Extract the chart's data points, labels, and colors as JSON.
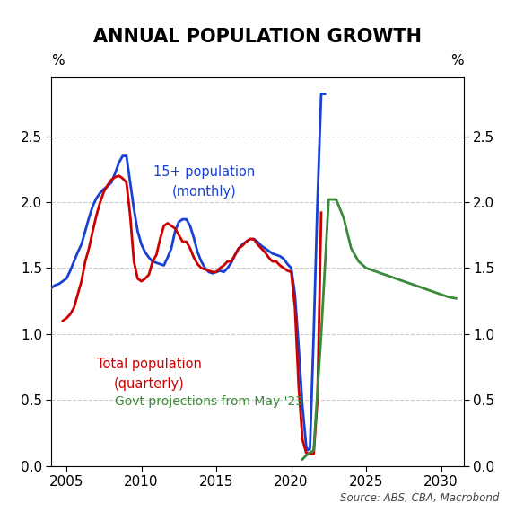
{
  "title": "ANNUAL POPULATION GROWTH",
  "ylabel_left": "%",
  "ylabel_right": "%",
  "source": "Source: ABS, CBA, Macrobond",
  "xlim": [
    2004.0,
    2031.5
  ],
  "ylim": [
    0.0,
    2.95
  ],
  "yticks": [
    0.0,
    0.5,
    1.0,
    1.5,
    2.0,
    2.5
  ],
  "xticks": [
    2005,
    2010,
    2015,
    2020,
    2025,
    2030
  ],
  "blue_color": "#1740d4",
  "red_color": "#cc0000",
  "green_color": "#3a8a3a",
  "blue_label_line1": "15+ population",
  "blue_label_line2": "(monthly)",
  "red_label_line1": "Total population",
  "red_label_line2": "(quarterly)",
  "green_label": "Govt projections from May '23",
  "blue_x": [
    2004.0,
    2004.25,
    2004.5,
    2004.75,
    2005.0,
    2005.25,
    2005.5,
    2005.75,
    2006.0,
    2006.25,
    2006.5,
    2006.75,
    2007.0,
    2007.25,
    2007.5,
    2007.75,
    2008.0,
    2008.25,
    2008.5,
    2008.75,
    2009.0,
    2009.25,
    2009.5,
    2009.75,
    2010.0,
    2010.25,
    2010.5,
    2010.75,
    2011.0,
    2011.25,
    2011.5,
    2011.75,
    2012.0,
    2012.25,
    2012.5,
    2012.75,
    2013.0,
    2013.25,
    2013.5,
    2013.75,
    2014.0,
    2014.25,
    2014.5,
    2014.75,
    2015.0,
    2015.25,
    2015.5,
    2015.75,
    2016.0,
    2016.25,
    2016.5,
    2016.75,
    2017.0,
    2017.25,
    2017.5,
    2017.75,
    2018.0,
    2018.25,
    2018.5,
    2018.75,
    2019.0,
    2019.25,
    2019.5,
    2019.75,
    2020.0,
    2020.25,
    2020.5,
    2020.75,
    2021.0,
    2021.1,
    2021.25,
    2021.5,
    2021.75,
    2022.0,
    2022.25
  ],
  "blue_y": [
    1.35,
    1.37,
    1.38,
    1.4,
    1.42,
    1.48,
    1.55,
    1.62,
    1.68,
    1.78,
    1.88,
    1.97,
    2.03,
    2.07,
    2.1,
    2.12,
    2.15,
    2.22,
    2.3,
    2.35,
    2.35,
    2.15,
    1.95,
    1.78,
    1.68,
    1.62,
    1.58,
    1.55,
    1.54,
    1.53,
    1.52,
    1.58,
    1.65,
    1.78,
    1.85,
    1.87,
    1.87,
    1.82,
    1.73,
    1.62,
    1.55,
    1.5,
    1.47,
    1.46,
    1.47,
    1.48,
    1.47,
    1.5,
    1.54,
    1.6,
    1.65,
    1.68,
    1.7,
    1.72,
    1.72,
    1.7,
    1.67,
    1.65,
    1.63,
    1.61,
    1.6,
    1.59,
    1.57,
    1.53,
    1.5,
    1.3,
    0.9,
    0.45,
    0.15,
    0.12,
    0.13,
    1.0,
    2.0,
    2.82,
    2.82
  ],
  "red_x": [
    2004.75,
    2005.0,
    2005.25,
    2005.5,
    2005.75,
    2006.0,
    2006.25,
    2006.5,
    2006.75,
    2007.0,
    2007.25,
    2007.5,
    2007.75,
    2008.0,
    2008.25,
    2008.5,
    2008.75,
    2009.0,
    2009.25,
    2009.5,
    2009.75,
    2010.0,
    2010.25,
    2010.5,
    2010.75,
    2011.0,
    2011.25,
    2011.5,
    2011.75,
    2012.0,
    2012.25,
    2012.5,
    2012.75,
    2013.0,
    2013.25,
    2013.5,
    2013.75,
    2014.0,
    2014.25,
    2014.5,
    2014.75,
    2015.0,
    2015.25,
    2015.5,
    2015.75,
    2016.0,
    2016.25,
    2016.5,
    2016.75,
    2017.0,
    2017.25,
    2017.5,
    2017.75,
    2018.0,
    2018.25,
    2018.5,
    2018.75,
    2019.0,
    2019.25,
    2019.5,
    2019.75,
    2020.0,
    2020.25,
    2020.5,
    2020.75,
    2021.0,
    2021.25,
    2021.5,
    2021.75,
    2022.0
  ],
  "red_y": [
    1.1,
    1.12,
    1.15,
    1.2,
    1.3,
    1.4,
    1.55,
    1.65,
    1.78,
    1.9,
    2.0,
    2.08,
    2.13,
    2.17,
    2.19,
    2.2,
    2.18,
    2.15,
    1.9,
    1.55,
    1.42,
    1.4,
    1.42,
    1.45,
    1.55,
    1.6,
    1.72,
    1.82,
    1.84,
    1.82,
    1.8,
    1.75,
    1.7,
    1.7,
    1.65,
    1.58,
    1.53,
    1.5,
    1.49,
    1.48,
    1.47,
    1.47,
    1.5,
    1.52,
    1.55,
    1.55,
    1.6,
    1.65,
    1.67,
    1.7,
    1.72,
    1.72,
    1.68,
    1.65,
    1.62,
    1.58,
    1.55,
    1.55,
    1.52,
    1.5,
    1.48,
    1.47,
    1.2,
    0.6,
    0.2,
    0.1,
    0.09,
    0.09,
    0.5,
    1.92
  ],
  "green_x": [
    2020.75,
    2021.0,
    2021.25,
    2021.5,
    2022.0,
    2022.5,
    2023.0,
    2023.5,
    2024.0,
    2024.5,
    2025.0,
    2025.5,
    2026.0,
    2026.5,
    2027.0,
    2027.5,
    2028.0,
    2028.5,
    2029.0,
    2029.5,
    2030.0,
    2030.5,
    2031.0
  ],
  "green_y": [
    0.05,
    0.08,
    0.1,
    0.12,
    1.0,
    2.02,
    2.02,
    1.88,
    1.65,
    1.55,
    1.5,
    1.48,
    1.46,
    1.44,
    1.42,
    1.4,
    1.38,
    1.36,
    1.34,
    1.32,
    1.3,
    1.28,
    1.27
  ]
}
